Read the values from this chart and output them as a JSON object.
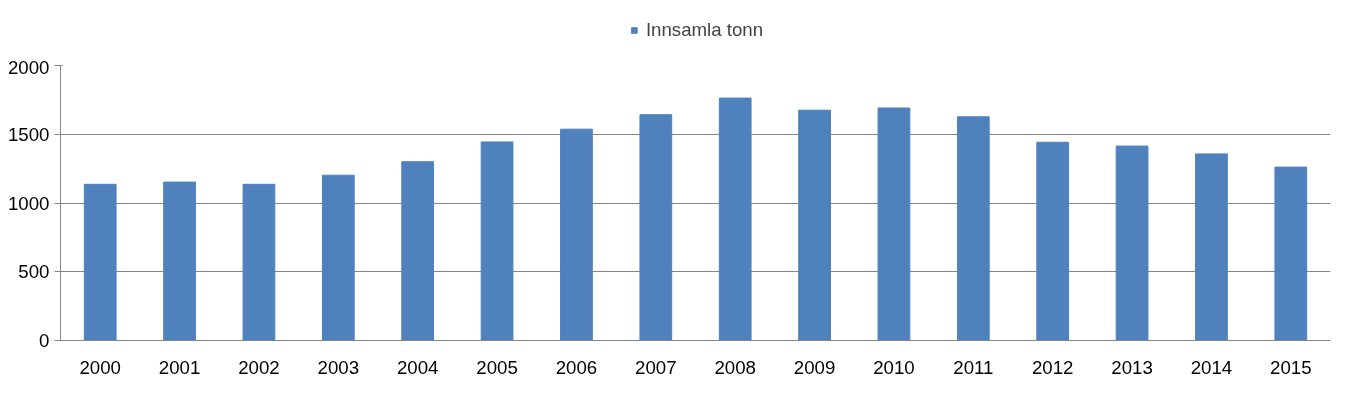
{
  "chart_data": {
    "type": "bar",
    "categories": [
      "2000",
      "2001",
      "2002",
      "2003",
      "2004",
      "2005",
      "2006",
      "2007",
      "2008",
      "2009",
      "2010",
      "2011",
      "2012",
      "2013",
      "2014",
      "2015"
    ],
    "series": [
      {
        "name": "Innsamla tonn",
        "color": "#4f81bd",
        "values": [
          1136,
          1152,
          1136,
          1202,
          1300,
          1444,
          1537,
          1642,
          1763,
          1675,
          1691,
          1627,
          1442,
          1414,
          1357,
          1261
        ]
      }
    ],
    "ylim": [
      0,
      2000
    ],
    "yticks": [
      0,
      500,
      1000,
      1500,
      2000
    ],
    "grid": "y",
    "legend": "top"
  }
}
